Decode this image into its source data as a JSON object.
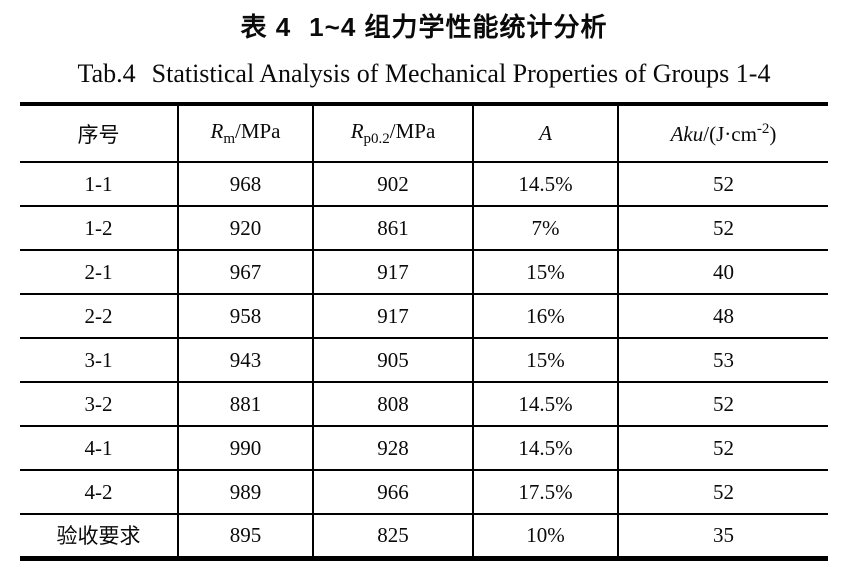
{
  "caption": {
    "zh": {
      "prefix": "表 4",
      "text": "1~4 组力学性能统计分析"
    },
    "en": {
      "prefix": "Tab.4",
      "text": "Statistical Analysis of Mechanical Properties of Groups 1-4"
    }
  },
  "table": {
    "header": {
      "col_id": "序号",
      "col_rm": {
        "symbol": "R",
        "sub": "m",
        "unit": "/MPa"
      },
      "col_rp": {
        "symbol": "R",
        "sub": "p0.2",
        "unit": "/MPa"
      },
      "col_a": {
        "symbol": "A"
      },
      "col_aku": {
        "symbol": "Aku",
        "unit_open": "/(J·cm",
        "sup": "-2",
        "unit_close": ")"
      }
    },
    "rows": [
      {
        "id": "1-1",
        "rm": "968",
        "rp": "902",
        "a": "14.5%",
        "aku": "52"
      },
      {
        "id": "1-2",
        "rm": "920",
        "rp": "861",
        "a": "7%",
        "aku": "52"
      },
      {
        "id": "2-1",
        "rm": "967",
        "rp": "917",
        "a": "15%",
        "aku": "40"
      },
      {
        "id": "2-2",
        "rm": "958",
        "rp": "917",
        "a": "16%",
        "aku": "48"
      },
      {
        "id": "3-1",
        "rm": "943",
        "rp": "905",
        "a": "15%",
        "aku": "53"
      },
      {
        "id": "3-2",
        "rm": "881",
        "rp": "808",
        "a": "14.5%",
        "aku": "52"
      },
      {
        "id": "4-1",
        "rm": "990",
        "rp": "928",
        "a": "14.5%",
        "aku": "52"
      },
      {
        "id": "4-2",
        "rm": "989",
        "rp": "966",
        "a": "17.5%",
        "aku": "52"
      },
      {
        "id": "验收要求",
        "rm": "895",
        "rp": "825",
        "a": "10%",
        "aku": "35"
      }
    ]
  }
}
